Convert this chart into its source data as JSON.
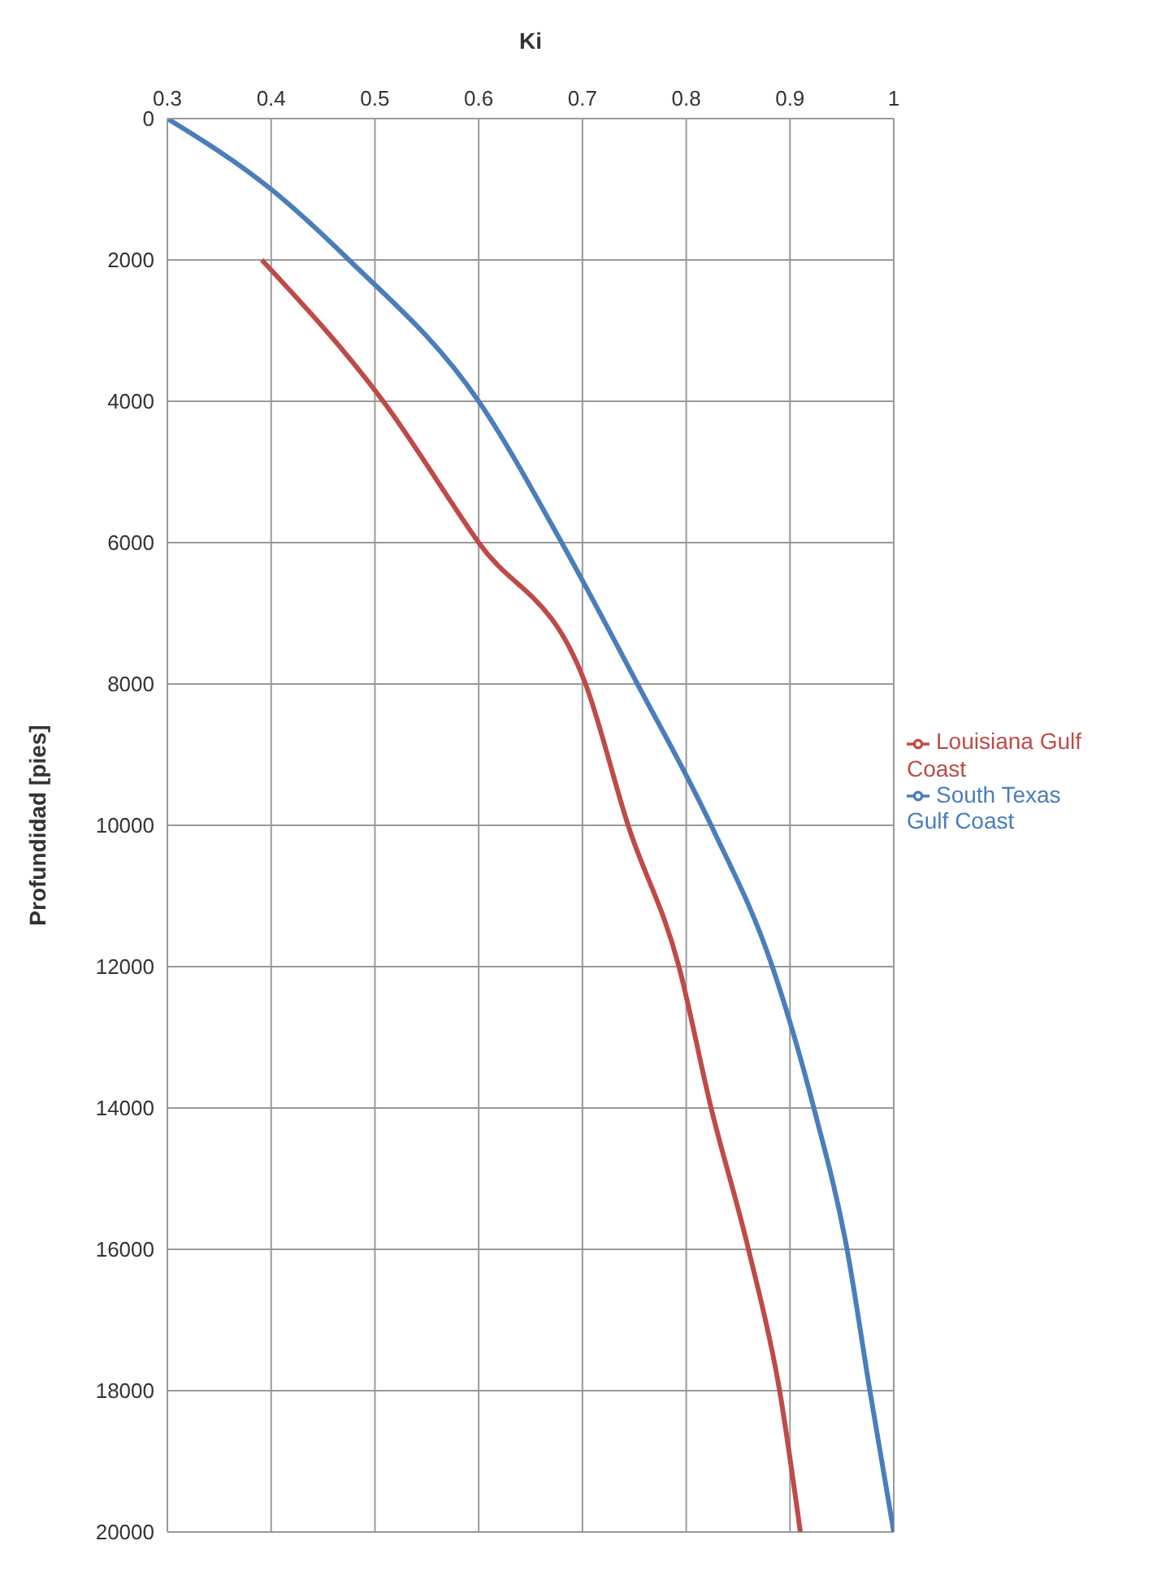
{
  "chart_data": {
    "type": "line",
    "xlabel": "Ki",
    "ylabel": "Profundidad [pies]",
    "xlim": [
      0.3,
      1
    ],
    "xticks": [
      0.3,
      0.4,
      0.5,
      0.6,
      0.7,
      0.8,
      0.9,
      1
    ],
    "ylim": [
      20000,
      0
    ],
    "yticks": [
      0,
      2000,
      4000,
      6000,
      8000,
      10000,
      12000,
      14000,
      16000,
      18000,
      20000
    ],
    "grid": true,
    "legend": "right",
    "marker": "none",
    "line_style": "solid",
    "series": [
      {
        "name": "South Texas Gulf Coast",
        "color": "#4a7ebb",
        "x": [
          0.3,
          0.4,
          0.475,
          0.6,
          0.68,
          0.753,
          0.824,
          0.883,
          0.923,
          0.955,
          0.977,
          1.0
        ],
        "values": [
          0,
          1000,
          2000,
          4000,
          6000,
          8000,
          10000,
          12000,
          14000,
          16000,
          18000,
          20000
        ]
      },
      {
        "name": "Louisiana Gulf Coast",
        "color": "#be4b48",
        "x": [
          0.391,
          0.508,
          0.6,
          0.703,
          0.744,
          0.793,
          0.824,
          0.86,
          0.89,
          0.91
        ],
        "values": [
          2000,
          4000,
          6000,
          8000,
          10000,
          12000,
          14000,
          16000,
          18000,
          20000
        ]
      }
    ]
  }
}
